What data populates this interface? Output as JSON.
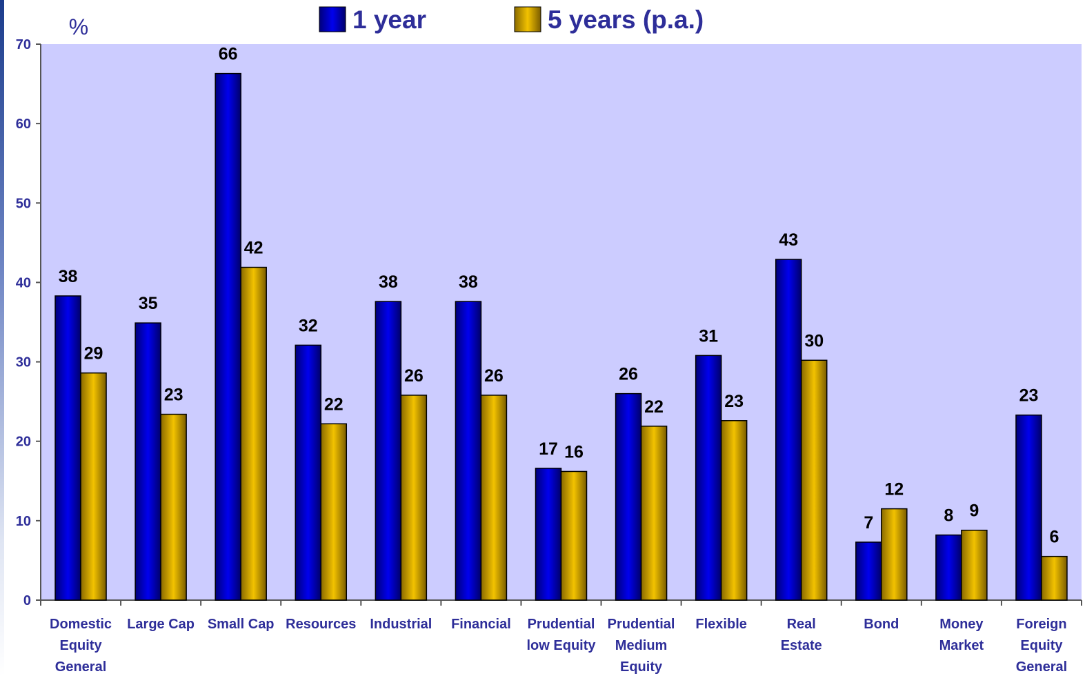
{
  "colors": {
    "plot_bg": "#ccccff",
    "series_1year": "#0000ee",
    "series_5years": "#f2c200",
    "text": "#000000",
    "axis_text": "#2e2e99",
    "legend_text": "#2e2e99"
  },
  "chart_data": {
    "type": "bar",
    "ylabel": "%",
    "ylim": [
      0,
      70
    ],
    "yticks": [
      0,
      10,
      20,
      30,
      40,
      50,
      60,
      70
    ],
    "legend_position": "top",
    "grid": false,
    "categories": [
      [
        "Domestic",
        "Equity",
        "General"
      ],
      [
        "Large Cap"
      ],
      [
        "Small Cap"
      ],
      [
        "Resources"
      ],
      [
        "Industrial"
      ],
      [
        "Financial"
      ],
      [
        "Prudential",
        "low Equity"
      ],
      [
        "Prudential",
        "Medium",
        "Equity"
      ],
      [
        "Flexible"
      ],
      [
        "Real",
        "Estate"
      ],
      [
        "Bond"
      ],
      [
        "Money",
        "Market"
      ],
      [
        "Foreign",
        "Equity",
        "General"
      ]
    ],
    "series": [
      {
        "name": "1 year",
        "values": [
          38.3,
          34.9,
          66.3,
          32.1,
          37.6,
          37.6,
          16.6,
          26.0,
          30.8,
          42.9,
          7.3,
          8.2,
          23.3
        ],
        "labels": [
          "38",
          "35",
          "66",
          "32",
          "38",
          "38",
          "17",
          "26",
          "31",
          "43",
          "7",
          "8",
          "23"
        ]
      },
      {
        "name": "5 years (p.a.)",
        "values": [
          28.6,
          23.4,
          41.9,
          22.2,
          25.8,
          25.8,
          16.2,
          21.9,
          22.6,
          30.2,
          11.5,
          8.8,
          5.5
        ],
        "labels": [
          "29",
          "23",
          "42",
          "22",
          "26",
          "26",
          "16",
          "22",
          "23",
          "30",
          "12",
          "9",
          "6"
        ]
      }
    ]
  }
}
